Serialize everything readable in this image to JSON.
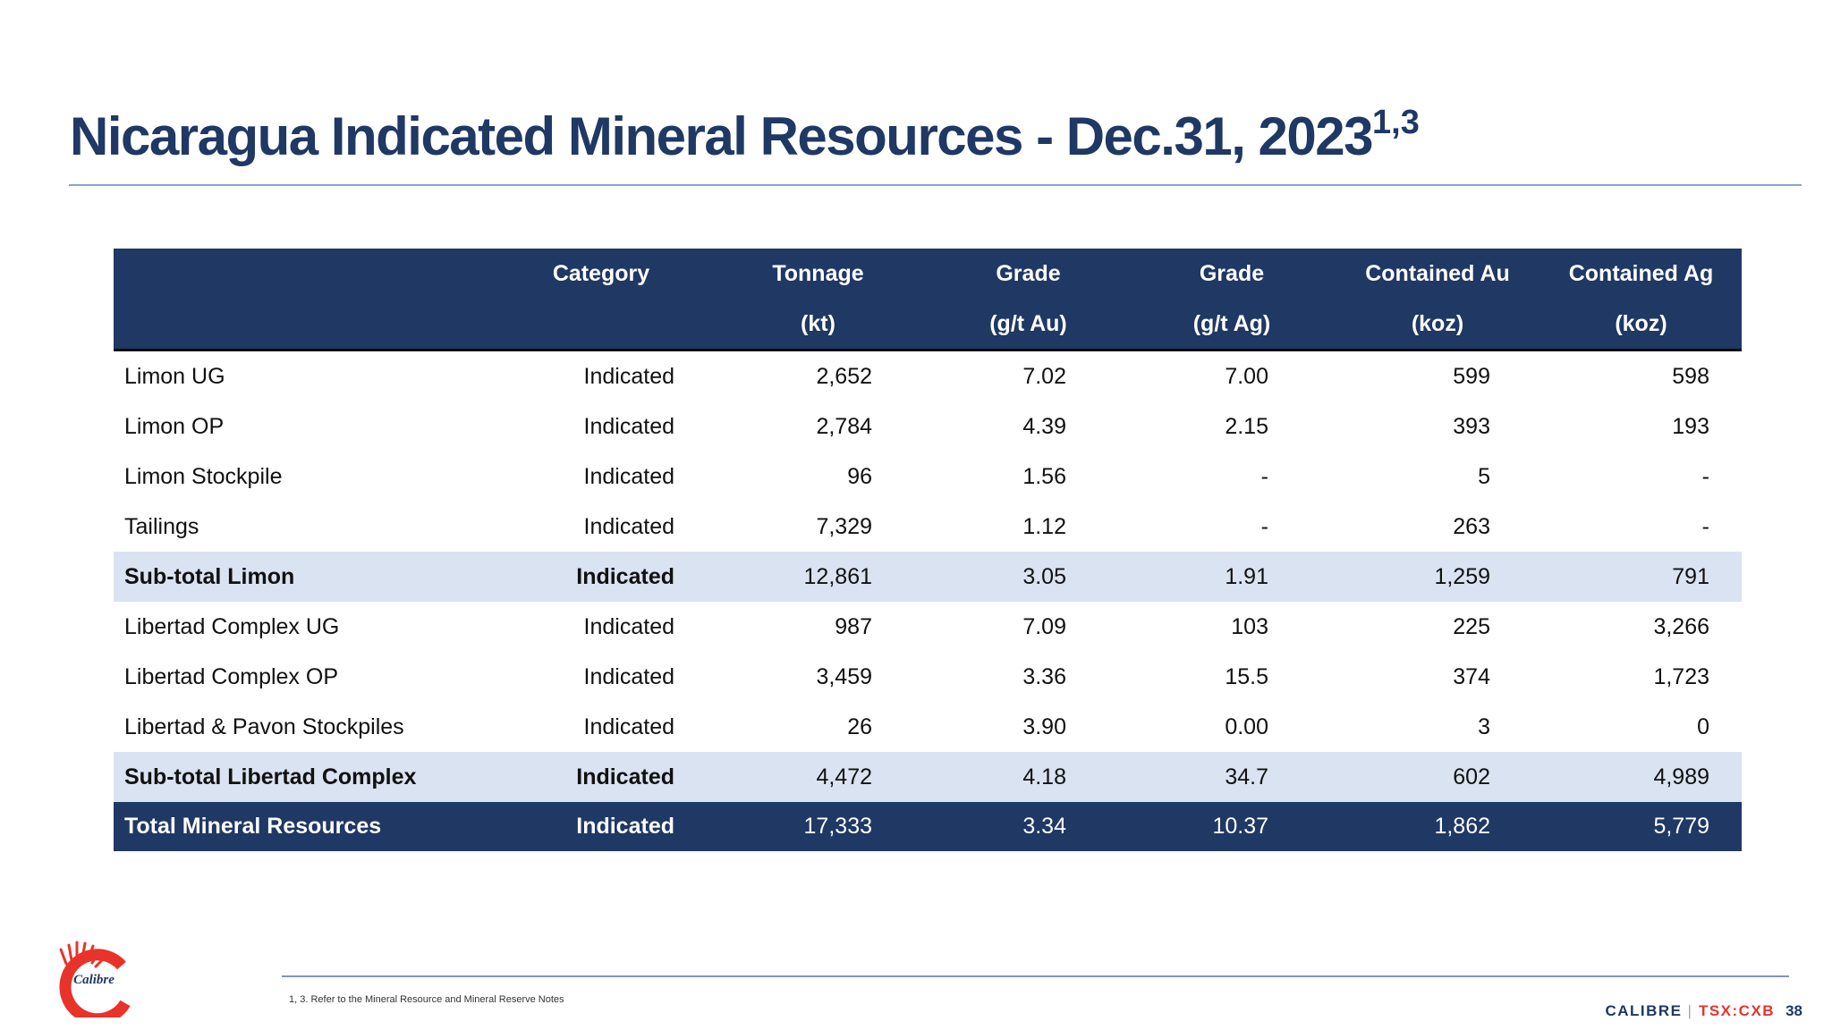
{
  "slide": {
    "title": "Nicaragua Indicated Mineral Resources - Dec.31, 2023",
    "title_superscript": "1,3",
    "footnote": "1, 3. Refer to the Mineral Resource and Mineral Reserve Notes",
    "page_number": "38"
  },
  "branding": {
    "logo_text": "Calibre",
    "company": "CALIBRE",
    "separator": "|",
    "ticker": "TSX:CXB",
    "colors": {
      "navy": "#1f3864",
      "light_blue": "#dae3f1",
      "logo_red": "#e8332a"
    }
  },
  "table": {
    "headers_top": [
      "",
      "Category",
      "Tonnage",
      "Grade",
      "Grade",
      "Contained Au",
      "Contained Ag"
    ],
    "headers_bottom": [
      "",
      "",
      "(kt)",
      "(g/t Au)",
      "(g/t Ag)",
      "(koz)",
      "(koz)"
    ],
    "rows": [
      [
        "Limon UG",
        "Indicated",
        "2,652",
        "7.02",
        "7.00",
        "599",
        "598"
      ],
      [
        "Limon OP",
        "Indicated",
        "2,784",
        "4.39",
        "2.15",
        "393",
        "193"
      ],
      [
        "Limon Stockpile",
        "Indicated",
        "96",
        "1.56",
        "-",
        "5",
        "-"
      ],
      [
        "Tailings",
        "Indicated",
        "7,329",
        "1.12",
        "-",
        "263",
        "-"
      ],
      [
        "Sub-total Limon",
        "Indicated",
        "12,861",
        "3.05",
        "1.91",
        "1,259",
        "791"
      ],
      [
        "Libertad Complex UG",
        "Indicated",
        "987",
        "7.09",
        "103",
        "225",
        "3,266"
      ],
      [
        "Libertad Complex OP",
        "Indicated",
        "3,459",
        "3.36",
        "15.5",
        "374",
        "1,723"
      ],
      [
        "Libertad & Pavon Stockpiles",
        "Indicated",
        "26",
        "3.90",
        "0.00",
        "3",
        "0"
      ],
      [
        "Sub-total Libertad Complex",
        "Indicated",
        "4,472",
        "4.18",
        "34.7",
        "602",
        "4,989"
      ],
      [
        "Total Mineral Resources",
        "Indicated",
        "17,333",
        "3.34",
        "10.37",
        "1,862",
        "5,779"
      ]
    ]
  }
}
